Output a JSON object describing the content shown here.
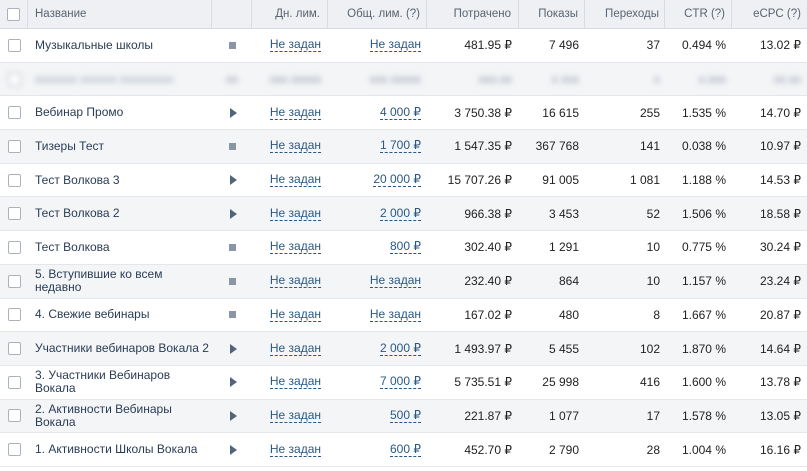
{
  "columns": {
    "name": "Название",
    "day_limit": "Дн. лим.",
    "total_limit": "Общ. лим. (?)",
    "spent": "Потрачено",
    "shows": "Показы",
    "clicks": "Переходы",
    "ctr": "CTR (?)",
    "ecpc": "eCPC (?)"
  },
  "rows": [
    {
      "name": "Музыкальные школы",
      "status": "stopped",
      "day_limit": "Не задан",
      "total_limit": "Не задан",
      "spent": "481.95 ₽",
      "shows": "7 496",
      "clicks": "37",
      "ctr": "0.494 %",
      "ecpc": "13.02 ₽"
    },
    {
      "name": "Вебинар Промо",
      "status": "playing",
      "day_limit": "Не задан",
      "total_limit": "4 000 ₽",
      "spent": "3 750.38 ₽",
      "shows": "16 615",
      "clicks": "255",
      "ctr": "1.535 %",
      "ecpc": "14.70 ₽"
    },
    {
      "name": "Тизеры Тест",
      "status": "stopped",
      "day_limit": "Не задан",
      "total_limit": "1 700 ₽",
      "spent": "1 547.35 ₽",
      "shows": "367 768",
      "clicks": "141",
      "ctr": "0.038 %",
      "ecpc": "10.97 ₽"
    },
    {
      "name": "Тест Волкова 3",
      "status": "playing",
      "day_limit": "Не задан",
      "total_limit": "20 000 ₽",
      "spent": "15 707.26 ₽",
      "shows": "91 005",
      "clicks": "1 081",
      "ctr": "1.188 %",
      "ecpc": "14.53 ₽"
    },
    {
      "name": "Тест Волкова 2",
      "status": "playing",
      "day_limit": "Не задан",
      "total_limit": "2 000 ₽",
      "spent": "966.38 ₽",
      "shows": "3 453",
      "clicks": "52",
      "ctr": "1.506 %",
      "ecpc": "18.58 ₽"
    },
    {
      "name": "Тест Волкова",
      "status": "stopped",
      "day_limit": "Не задан",
      "total_limit": "800 ₽",
      "spent": "302.40 ₽",
      "shows": "1 291",
      "clicks": "10",
      "ctr": "0.775 %",
      "ecpc": "30.24 ₽"
    },
    {
      "name": "5. Вступившие ко всем недавно",
      "status": "stopped",
      "day_limit": "Не задан",
      "total_limit": "Не задан",
      "spent": "232.40 ₽",
      "shows": "864",
      "clicks": "10",
      "ctr": "1.157 %",
      "ecpc": "23.24 ₽"
    },
    {
      "name": "4. Свежие вебинары",
      "status": "stopped",
      "day_limit": "Не задан",
      "total_limit": "Не задан",
      "spent": "167.02 ₽",
      "shows": "480",
      "clicks": "8",
      "ctr": "1.667 %",
      "ecpc": "20.87 ₽"
    },
    {
      "name": "Участники вебинаров Вокала 2",
      "status": "playing",
      "day_limit": "Не задан",
      "total_limit": "2 000 ₽",
      "spent": "1 493.97 ₽",
      "shows": "5 455",
      "clicks": "102",
      "ctr": "1.870 %",
      "ecpc": "14.64 ₽"
    },
    {
      "name": "3. Участники Вебинаров Вокала",
      "status": "playing",
      "day_limit": "Не задан",
      "total_limit": "7 000 ₽",
      "spent": "5 735.51 ₽",
      "shows": "25 998",
      "clicks": "416",
      "ctr": "1.600 %",
      "ecpc": "13.78 ₽"
    },
    {
      "name": "2. Активности Вебинары Вокала",
      "status": "playing",
      "day_limit": "Не задан",
      "total_limit": "500 ₽",
      "spent": "221.87 ₽",
      "shows": "1 077",
      "clicks": "17",
      "ctr": "1.578 %",
      "ecpc": "13.05 ₽"
    },
    {
      "name": "1. Активности Школы Вокала",
      "status": "playing",
      "day_limit": "Не задан",
      "total_limit": "600 ₽",
      "spent": "452.70 ₽",
      "shows": "2 790",
      "clicks": "28",
      "ctr": "1.004 %",
      "ecpc": "16.16 ₽"
    }
  ],
  "blurred_row": {
    "name": "xxxxxxx xxxxxx xxxxxxxxx",
    "status": "xx",
    "day_limit": "xxx xxxxx",
    "total_limit": "xxx xxxxx",
    "spent": "xxx.xx",
    "shows": "x xxx",
    "clicks": "x",
    "ctr": "x.xxx",
    "ecpc": "xx.xx"
  }
}
